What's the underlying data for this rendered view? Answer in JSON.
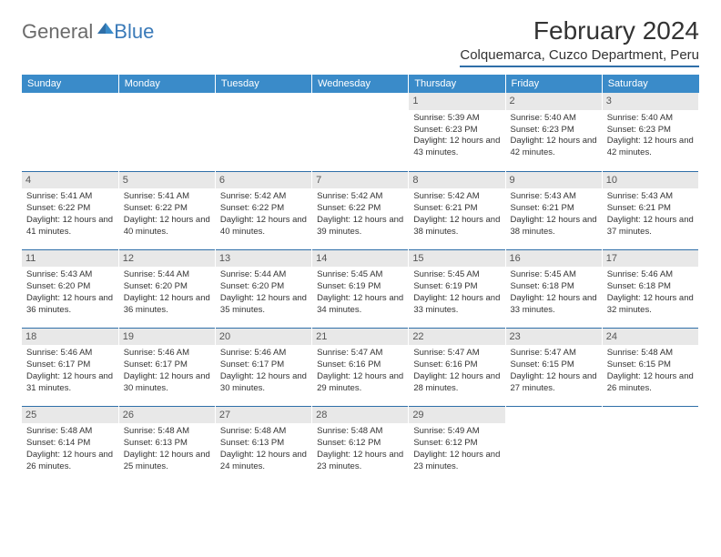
{
  "logo": {
    "general": "General",
    "blue": "Blue"
  },
  "title": "February 2024",
  "location": "Colquemarca, Cuzco Department, Peru",
  "colors": {
    "header_bg": "#3a8bc9",
    "header_text": "#ffffff",
    "rule": "#2f6fa8",
    "daynum_bg": "#e8e8e8",
    "logo_blue": "#3a7ab8",
    "logo_gray": "#6b6b6b",
    "page_bg": "#ffffff",
    "text": "#333333"
  },
  "typography": {
    "title_fontsize": 28,
    "location_fontsize": 15,
    "dayheader_fontsize": 11,
    "daynum_fontsize": 11,
    "body_fontsize": 9.5,
    "font_family": "Arial"
  },
  "layout": {
    "columns": 7,
    "rows": 5,
    "first_day_index": 4
  },
  "day_headers": [
    "Sunday",
    "Monday",
    "Tuesday",
    "Wednesday",
    "Thursday",
    "Friday",
    "Saturday"
  ],
  "days": [
    {
      "n": 1,
      "sunrise": "5:39 AM",
      "sunset": "6:23 PM",
      "daylight": "12 hours and 43 minutes."
    },
    {
      "n": 2,
      "sunrise": "5:40 AM",
      "sunset": "6:23 PM",
      "daylight": "12 hours and 42 minutes."
    },
    {
      "n": 3,
      "sunrise": "5:40 AM",
      "sunset": "6:23 PM",
      "daylight": "12 hours and 42 minutes."
    },
    {
      "n": 4,
      "sunrise": "5:41 AM",
      "sunset": "6:22 PM",
      "daylight": "12 hours and 41 minutes."
    },
    {
      "n": 5,
      "sunrise": "5:41 AM",
      "sunset": "6:22 PM",
      "daylight": "12 hours and 40 minutes."
    },
    {
      "n": 6,
      "sunrise": "5:42 AM",
      "sunset": "6:22 PM",
      "daylight": "12 hours and 40 minutes."
    },
    {
      "n": 7,
      "sunrise": "5:42 AM",
      "sunset": "6:22 PM",
      "daylight": "12 hours and 39 minutes."
    },
    {
      "n": 8,
      "sunrise": "5:42 AM",
      "sunset": "6:21 PM",
      "daylight": "12 hours and 38 minutes."
    },
    {
      "n": 9,
      "sunrise": "5:43 AM",
      "sunset": "6:21 PM",
      "daylight": "12 hours and 38 minutes."
    },
    {
      "n": 10,
      "sunrise": "5:43 AM",
      "sunset": "6:21 PM",
      "daylight": "12 hours and 37 minutes."
    },
    {
      "n": 11,
      "sunrise": "5:43 AM",
      "sunset": "6:20 PM",
      "daylight": "12 hours and 36 minutes."
    },
    {
      "n": 12,
      "sunrise": "5:44 AM",
      "sunset": "6:20 PM",
      "daylight": "12 hours and 36 minutes."
    },
    {
      "n": 13,
      "sunrise": "5:44 AM",
      "sunset": "6:20 PM",
      "daylight": "12 hours and 35 minutes."
    },
    {
      "n": 14,
      "sunrise": "5:45 AM",
      "sunset": "6:19 PM",
      "daylight": "12 hours and 34 minutes."
    },
    {
      "n": 15,
      "sunrise": "5:45 AM",
      "sunset": "6:19 PM",
      "daylight": "12 hours and 33 minutes."
    },
    {
      "n": 16,
      "sunrise": "5:45 AM",
      "sunset": "6:18 PM",
      "daylight": "12 hours and 33 minutes."
    },
    {
      "n": 17,
      "sunrise": "5:46 AM",
      "sunset": "6:18 PM",
      "daylight": "12 hours and 32 minutes."
    },
    {
      "n": 18,
      "sunrise": "5:46 AM",
      "sunset": "6:17 PM",
      "daylight": "12 hours and 31 minutes."
    },
    {
      "n": 19,
      "sunrise": "5:46 AM",
      "sunset": "6:17 PM",
      "daylight": "12 hours and 30 minutes."
    },
    {
      "n": 20,
      "sunrise": "5:46 AM",
      "sunset": "6:17 PM",
      "daylight": "12 hours and 30 minutes."
    },
    {
      "n": 21,
      "sunrise": "5:47 AM",
      "sunset": "6:16 PM",
      "daylight": "12 hours and 29 minutes."
    },
    {
      "n": 22,
      "sunrise": "5:47 AM",
      "sunset": "6:16 PM",
      "daylight": "12 hours and 28 minutes."
    },
    {
      "n": 23,
      "sunrise": "5:47 AM",
      "sunset": "6:15 PM",
      "daylight": "12 hours and 27 minutes."
    },
    {
      "n": 24,
      "sunrise": "5:48 AM",
      "sunset": "6:15 PM",
      "daylight": "12 hours and 26 minutes."
    },
    {
      "n": 25,
      "sunrise": "5:48 AM",
      "sunset": "6:14 PM",
      "daylight": "12 hours and 26 minutes."
    },
    {
      "n": 26,
      "sunrise": "5:48 AM",
      "sunset": "6:13 PM",
      "daylight": "12 hours and 25 minutes."
    },
    {
      "n": 27,
      "sunrise": "5:48 AM",
      "sunset": "6:13 PM",
      "daylight": "12 hours and 24 minutes."
    },
    {
      "n": 28,
      "sunrise": "5:48 AM",
      "sunset": "6:12 PM",
      "daylight": "12 hours and 23 minutes."
    },
    {
      "n": 29,
      "sunrise": "5:49 AM",
      "sunset": "6:12 PM",
      "daylight": "12 hours and 23 minutes."
    }
  ],
  "labels": {
    "sunrise": "Sunrise:",
    "sunset": "Sunset:",
    "daylight": "Daylight:"
  }
}
